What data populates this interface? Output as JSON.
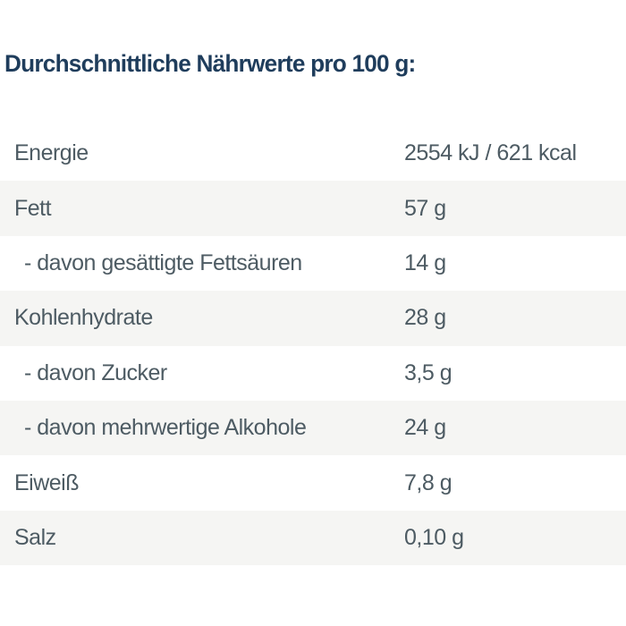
{
  "page": {
    "title": "Durchschnittliche Nährwerte pro 100 g:"
  },
  "table": {
    "rows": [
      {
        "label": "Energie",
        "value": "2554 kJ / 621 kcal",
        "indent": false,
        "shaded": false
      },
      {
        "label": "Fett",
        "value": "57 g",
        "indent": false,
        "shaded": true
      },
      {
        "label": "- davon gesättigte Fettsäuren",
        "value": "14 g",
        "indent": true,
        "shaded": false
      },
      {
        "label": "Kohlenhydrate",
        "value": "28 g",
        "indent": false,
        "shaded": true
      },
      {
        "label": "- davon Zucker",
        "value": "3,5 g",
        "indent": true,
        "shaded": false
      },
      {
        "label": "- davon mehrwertige Alkohole",
        "value": "24 g",
        "indent": true,
        "shaded": true
      },
      {
        "label": "Eiweiß",
        "value": "7,8 g",
        "indent": false,
        "shaded": false
      },
      {
        "label": "Salz",
        "value": "0,10 g",
        "indent": false,
        "shaded": true
      }
    ]
  },
  "colors": {
    "title_text": "#1f3d5c",
    "row_text": "#4d5b63",
    "row_shaded_bg": "#f5f5f3",
    "page_bg": "#ffffff"
  }
}
